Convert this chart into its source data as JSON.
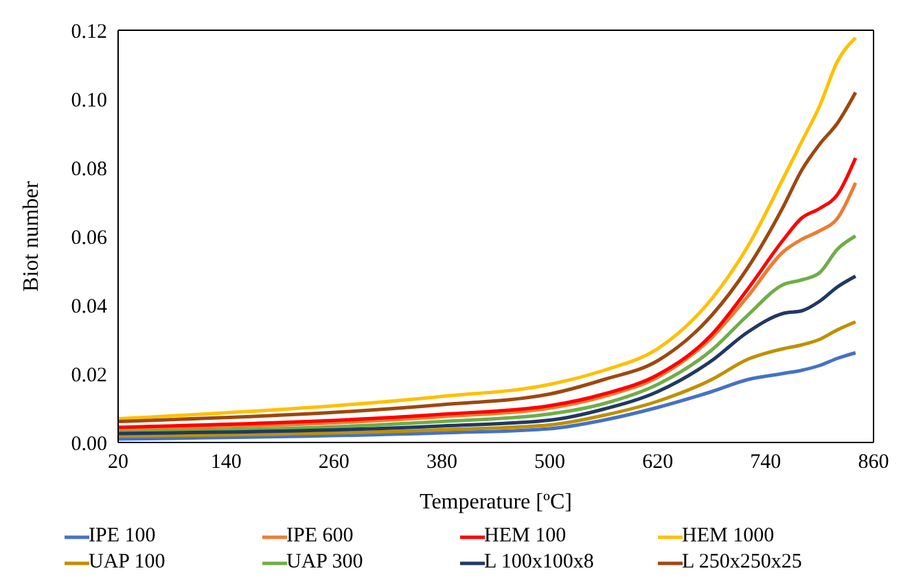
{
  "chart_data": {
    "type": "line",
    "xlabel": "Temperature [ºC]",
    "ylabel": "Biot number",
    "x": [
      20,
      380,
      500,
      560,
      620,
      680,
      720,
      760,
      780,
      800,
      820,
      840
    ],
    "series": [
      {
        "name": "IPE 100",
        "color": "#4472c4",
        "values": [
          0.001,
          0.0028,
          0.004,
          0.0065,
          0.0102,
          0.0148,
          0.0183,
          0.0201,
          0.021,
          0.0224,
          0.0245,
          0.0261
        ]
      },
      {
        "name": "IPE 600",
        "color": "#ed7d31",
        "values": [
          0.0037,
          0.0075,
          0.01,
          0.0134,
          0.019,
          0.0305,
          0.0425,
          0.0556,
          0.0591,
          0.0616,
          0.0653,
          0.0756
        ]
      },
      {
        "name": "HEM 100",
        "color": "#ff0000",
        "values": [
          0.0044,
          0.0082,
          0.0107,
          0.0141,
          0.0197,
          0.0314,
          0.0446,
          0.0591,
          0.0653,
          0.0681,
          0.0722,
          0.0828
        ]
      },
      {
        "name": "HEM 1000",
        "color": "#ffc000",
        "values": [
          0.0069,
          0.0134,
          0.0169,
          0.021,
          0.0273,
          0.0418,
          0.057,
          0.0771,
          0.0875,
          0.0979,
          0.111,
          0.1178
        ]
      },
      {
        "name": "UAP 100",
        "color": "#bf9000",
        "values": [
          0.0019,
          0.0037,
          0.0051,
          0.0079,
          0.012,
          0.0183,
          0.0242,
          0.0273,
          0.0284,
          0.03,
          0.0328,
          0.0351
        ]
      },
      {
        "name": "UAP 300",
        "color": "#70ad47",
        "values": [
          0.003,
          0.0061,
          0.0083,
          0.0113,
          0.0169,
          0.0269,
          0.037,
          0.046,
          0.0473,
          0.0494,
          0.0563,
          0.0601
        ]
      },
      {
        "name": "L 100x100x8",
        "color": "#203864",
        "values": [
          0.0026,
          0.0048,
          0.0065,
          0.0097,
          0.0148,
          0.0238,
          0.0321,
          0.0376,
          0.0383,
          0.0411,
          0.0453,
          0.0484
        ]
      },
      {
        "name": "L 250x250x25",
        "color": "#9e480e",
        "values": [
          0.0061,
          0.011,
          0.0141,
          0.0183,
          0.0238,
          0.037,
          0.0508,
          0.0688,
          0.0792,
          0.0868,
          0.093,
          0.1019
        ]
      }
    ],
    "xlim": [
      20,
      860
    ],
    "xticks": [
      20,
      140,
      260,
      380,
      500,
      620,
      740,
      860
    ],
    "ylim": [
      0,
      0.12
    ],
    "yticks": [
      {
        "value": 0,
        "label": "0.00"
      },
      {
        "value": 0.02,
        "label": "0.02"
      },
      {
        "value": 0.04,
        "label": "0.04"
      },
      {
        "value": 0.06,
        "label": "0.06"
      },
      {
        "value": 0.08,
        "label": "0.08"
      },
      {
        "value": 0.1,
        "label": "0.10"
      },
      {
        "value": 0.12,
        "label": "0.12"
      }
    ],
    "grid": false,
    "legend": "bottom",
    "marker": "none",
    "line_style": "solid"
  }
}
